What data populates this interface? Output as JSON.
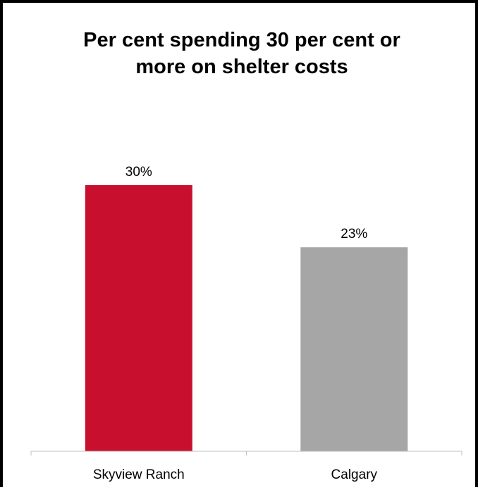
{
  "chart_data": {
    "type": "bar",
    "title": "Per cent spending 30 per cent or\nmore on shelter costs",
    "categories": [
      "Skyview Ranch",
      "Calgary"
    ],
    "values": [
      30,
      23
    ],
    "value_labels": [
      "30%",
      "23%"
    ],
    "bar_colors": [
      "#c8102e",
      "#a6a6a6"
    ],
    "xlabel": "",
    "ylabel": "",
    "ylim": [
      0,
      35
    ],
    "grid": false,
    "legend": "none"
  }
}
